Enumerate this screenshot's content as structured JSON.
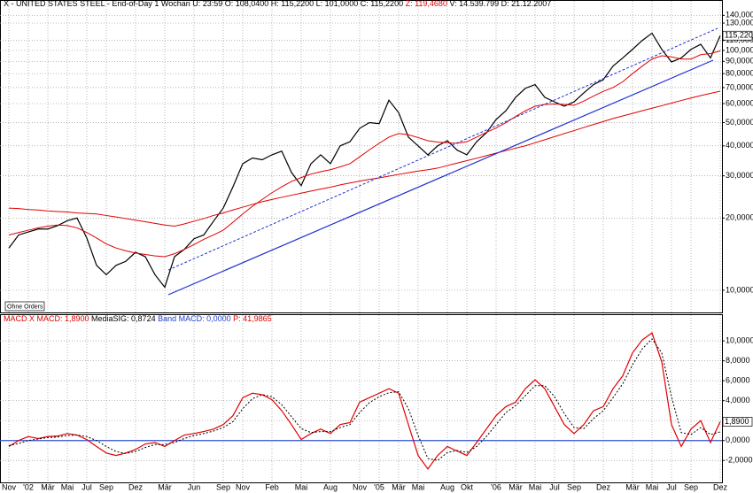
{
  "chart_data": [
    {
      "type": "line",
      "header": [
        {
          "text": "X - UNITED STATES STEEL - End-of-Day 1 Wochan U: 23:59 O: 108,0400 H: 115,2200 L: 101,0000 C: 115,2200",
          "color": "#000000"
        },
        {
          "text": " Z: 119,4680",
          "color": "#e00000"
        },
        {
          "text": " V: 14.539.799 D: 21.12.2007",
          "color": "#000000"
        }
      ],
      "annotation": "Ohne Orders",
      "last_label": "115,2200",
      "log_scale": true,
      "grid": true,
      "categories": [
        "Nov",
        null,
        "'02",
        null,
        "Mär",
        null,
        "Mai",
        null,
        "Jul",
        null,
        "Sep",
        null,
        null,
        "Dez",
        null,
        null,
        "Mär",
        null,
        null,
        "Jun",
        null,
        null,
        "Sep",
        null,
        "Nov",
        null,
        null,
        "Feb",
        null,
        null,
        "Mai",
        null,
        null,
        "Aug",
        null,
        null,
        "Nov",
        null,
        "'05",
        null,
        "Mär",
        null,
        "Mai",
        null,
        null,
        "Aug",
        null,
        "Okt",
        null,
        null,
        "'06",
        null,
        "Mär",
        null,
        "Mai",
        null,
        "Jul",
        null,
        "Sep",
        null,
        null,
        "Dez",
        null,
        null,
        "Mär",
        null,
        "Mai",
        null,
        "Jul",
        null,
        "Sep",
        null,
        null,
        "Dez"
      ],
      "series": [
        {
          "name": "Kurs",
          "color": "#000000",
          "width": 1.2,
          "values": [
            15,
            17,
            17.5,
            18,
            18,
            18.6,
            19.5,
            20,
            16.5,
            12.7,
            11.6,
            12.7,
            13.2,
            14.4,
            13.8,
            11.6,
            10.3,
            13.8,
            14.8,
            16.4,
            17,
            19.4,
            22,
            27,
            33.7,
            35.6,
            35,
            36.7,
            38,
            31,
            27.3,
            33.7,
            36.7,
            33.7,
            40,
            41.6,
            47.3,
            50,
            49.5,
            62,
            55,
            43.5,
            40,
            36.7,
            40,
            42,
            38.4,
            36.7,
            41.6,
            45.3,
            51.5,
            56,
            63.7,
            69.5,
            72,
            63.7,
            61,
            58.5,
            61,
            66.5,
            72,
            75.5,
            86,
            93,
            101,
            110,
            118,
            101,
            89.5,
            93,
            101,
            106,
            93,
            115.22
          ]
        },
        {
          "name": "GD kurz",
          "color": "#e00000",
          "width": 1,
          "values": [
            17,
            17.4,
            17.8,
            18.2,
            18.5,
            18.7,
            18.6,
            18.2,
            17.4,
            16.5,
            15.6,
            15,
            14.6,
            14.3,
            14.1,
            13.9,
            13.8,
            14.2,
            14.8,
            15.5,
            16.3,
            17,
            17.8,
            19.2,
            20.8,
            22.4,
            23.9,
            25.5,
            27,
            28.4,
            29.5,
            30.5,
            31.2,
            31.8,
            32.7,
            33.7,
            36,
            38.5,
            41,
            43.5,
            45,
            44.5,
            43.3,
            42,
            41.5,
            41.2,
            41,
            41.6,
            43.5,
            45.5,
            47.5,
            50,
            53,
            56,
            58.5,
            59.5,
            59.8,
            59.5,
            59,
            61.5,
            64.5,
            67.5,
            70,
            74,
            80,
            86,
            92,
            95,
            94,
            92,
            92,
            96,
            97,
            99.5
          ]
        },
        {
          "name": "GD lang",
          "color": "#e00000",
          "width": 1,
          "values": [
            22,
            21.9,
            21.7,
            21.6,
            21.4,
            21.3,
            21.2,
            21,
            20.9,
            20.8,
            20.5,
            20.2,
            19.9,
            19.6,
            19.3,
            19,
            18.7,
            18.5,
            18.9,
            19.4,
            19.9,
            20.5,
            21,
            21.6,
            22.2,
            22.8,
            23.4,
            23.9,
            24.4,
            24.9,
            25.4,
            25.9,
            26.4,
            26.9,
            27.5,
            28,
            28.5,
            29,
            29.4,
            29.9,
            30.4,
            30.9,
            31.4,
            31.8,
            32.3,
            33.1,
            33.9,
            34.7,
            35.5,
            36.4,
            37.3,
            38.2,
            39.1,
            40,
            41.2,
            42.4,
            43.7,
            45,
            46.3,
            47.7,
            49.1,
            50.5,
            52,
            53.3,
            54.6,
            56,
            57.4,
            58.8,
            60.3,
            61.8,
            63.3,
            64.8,
            66.2,
            67.6
          ]
        }
      ],
      "ylim": [
        8.15,
        149
      ],
      "yticks": [
        {
          "value": 10,
          "label": "10,0000"
        },
        {
          "value": 20,
          "label": "20,0000"
        },
        {
          "value": 30,
          "label": "30,0000"
        },
        {
          "value": 40,
          "label": "40,0000"
        },
        {
          "value": 50,
          "label": "50,0000"
        },
        {
          "value": 60,
          "label": "60,0000"
        },
        {
          "value": 70,
          "label": "70,0000"
        },
        {
          "value": 80,
          "label": "80,0000"
        },
        {
          "value": 90,
          "label": "90,0000"
        },
        {
          "value": 100,
          "label": "100,0000"
        },
        {
          "value": 110,
          "label": "110,0000"
        },
        {
          "value": 130,
          "label": "130,0000"
        },
        {
          "value": 140,
          "label": "140,0000"
        }
      ]
    },
    {
      "type": "line",
      "header": [
        {
          "text": "MACD X MACD: 1,8900",
          "color": "#e00000"
        },
        {
          "text": " MediaSIG: 0,8724",
          "color": "#000000"
        },
        {
          "text": " Band MACD: 0,0000",
          "color": "#2040d0"
        },
        {
          "text": " P: 41,9865",
          "color": "#e00000"
        }
      ],
      "last_label": "1,8900",
      "band": 0,
      "band_color": "#3050d0",
      "grid": true,
      "series": [
        {
          "name": "MACD",
          "color": "#e00000",
          "width": 1.2,
          "values": [
            -0.6,
            0,
            0.4,
            0.2,
            0.4,
            0.45,
            0.7,
            0.55,
            0.1,
            -0.6,
            -1.25,
            -1.5,
            -1.25,
            -0.9,
            -0.35,
            -0.2,
            -0.6,
            0,
            0.55,
            0.7,
            0.9,
            1.15,
            1.6,
            2.5,
            4.3,
            4.75,
            4.6,
            4.1,
            3,
            1.6,
            0.1,
            0.7,
            1.15,
            0.7,
            1.6,
            1.8,
            3.85,
            4.3,
            4.75,
            5.2,
            4.75,
            1.6,
            -1.5,
            -2.85,
            -1.5,
            -0.6,
            -1.05,
            -1.5,
            -0.2,
            1.15,
            2.5,
            3.4,
            3.85,
            5.2,
            6.1,
            5.2,
            3.4,
            1.6,
            0.7,
            1.6,
            3,
            3.4,
            5.2,
            6.5,
            8.8,
            10.1,
            10.8,
            7.9,
            1.6,
            -0.6,
            1.15,
            2,
            -0.2,
            1.89
          ]
        },
        {
          "name": "MediaSIG",
          "color": "#000000",
          "width": 1,
          "dash": true,
          "values": [
            -0.5,
            -0.3,
            0,
            0.15,
            0.3,
            0.35,
            0.5,
            0.55,
            0.4,
            0,
            -0.6,
            -1.1,
            -1.3,
            -1.1,
            -0.7,
            -0.4,
            -0.4,
            -0.2,
            0.2,
            0.5,
            0.7,
            0.95,
            1.3,
            1.9,
            3.2,
            4.2,
            4.6,
            4.4,
            3.6,
            2.4,
            1.2,
            0.8,
            0.9,
            0.9,
            1.3,
            1.6,
            2.8,
            3.8,
            4.4,
            4.8,
            4.9,
            3.2,
            0.5,
            -1.8,
            -2,
            -1.2,
            -1,
            -1.2,
            -0.6,
            0.4,
            1.6,
            2.8,
            3.5,
            4.5,
            5.5,
            5.5,
            4.4,
            2.7,
            1.3,
            1.2,
            2.2,
            3,
            4.3,
            5.7,
            7.6,
            9.2,
            10.2,
            8.8,
            4.4,
            0.8,
            0.6,
            1.3,
            0.6,
            0.8724
          ]
        }
      ],
      "ylim": [
        -4.2,
        12.5
      ],
      "yticks": [
        {
          "value": -2,
          "label": "-2,0000"
        },
        {
          "value": 0,
          "label": "0,0000"
        },
        {
          "value": 2,
          "label": "2,0000"
        },
        {
          "value": 4,
          "label": "4,0000"
        },
        {
          "value": 6,
          "label": "6,0000"
        },
        {
          "value": 8,
          "label": "8,0000"
        },
        {
          "value": 10,
          "label": "10,0000"
        }
      ]
    }
  ]
}
